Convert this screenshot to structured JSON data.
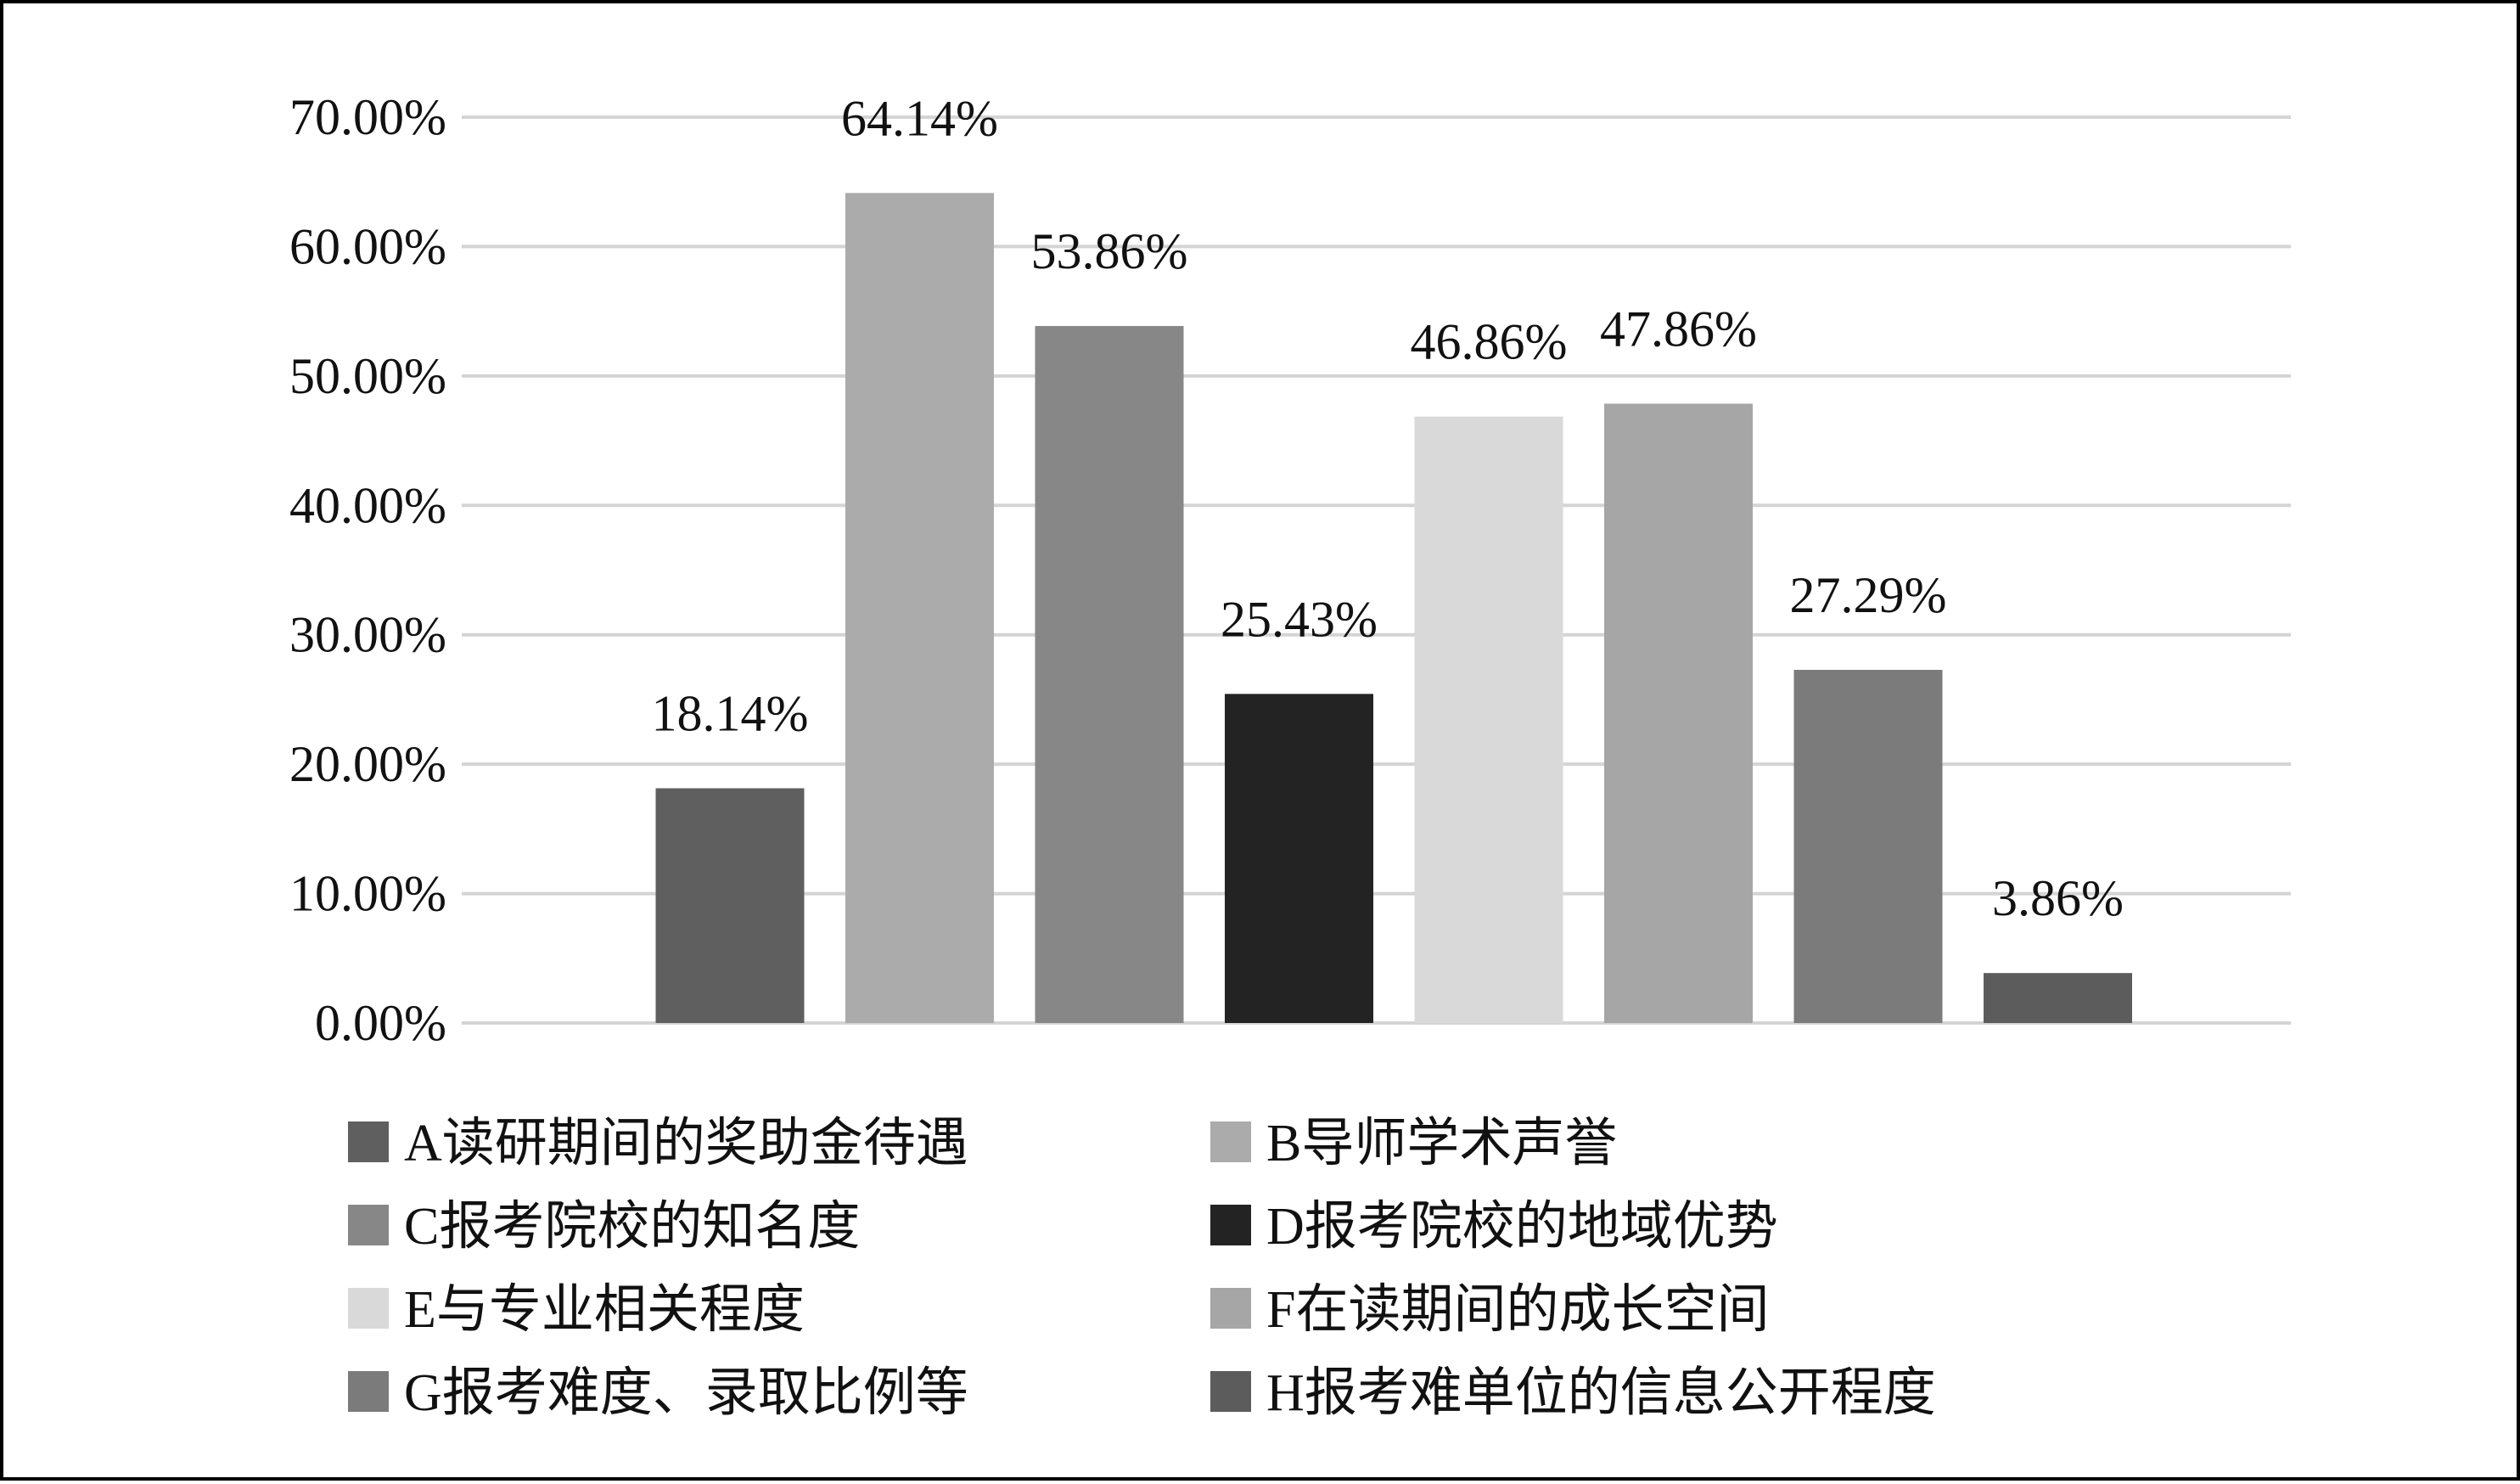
{
  "chart_data": {
    "type": "bar",
    "title": "",
    "xlabel": "",
    "ylabel": "",
    "ylim": [
      0,
      0.7
    ],
    "yticks": [
      "0.00%",
      "10.00%",
      "20.00%",
      "30.00%",
      "40.00%",
      "50.00%",
      "60.00%",
      "70.00%"
    ],
    "grid": true,
    "legend_position": "bottom",
    "categories": [
      "A",
      "B",
      "C",
      "D",
      "E",
      "F",
      "G",
      "H"
    ],
    "values": [
      0.1814,
      0.6414,
      0.5386,
      0.2543,
      0.4686,
      0.4786,
      0.2729,
      0.0386
    ],
    "data_labels": [
      "18.14%",
      "64.14%",
      "53.86%",
      "25.43%",
      "46.86%",
      "47.86%",
      "27.29%",
      "3.86%"
    ],
    "colors": [
      "#5f5f5f",
      "#ababab",
      "#878787",
      "#232323",
      "#d9d9d9",
      "#a6a6a6",
      "#7b7b7b",
      "#5c5c5c"
    ],
    "legend": [
      "A读研期间的奖助金待遇",
      "B导师学术声誉",
      "C报考院校的知名度",
      "D报考院校的地域优势",
      "E与专业相关程度",
      "F在读期间的成长空间",
      "G报考难度、录取比例等",
      "H报考难单位的信息公开程度"
    ]
  }
}
